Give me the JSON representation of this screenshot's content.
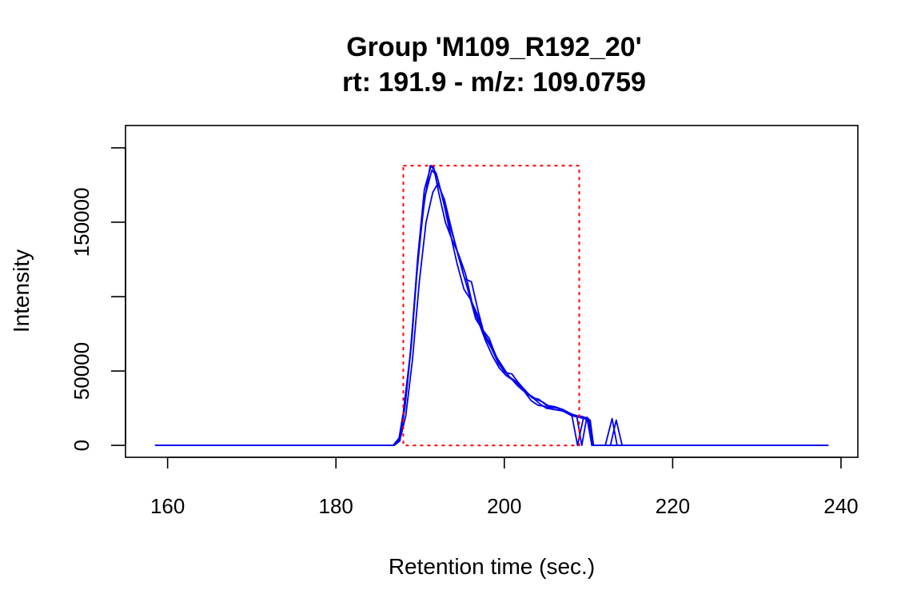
{
  "chart_data": {
    "type": "line",
    "title": "Group 'M109_R192_20'",
    "subtitle": "rt: 191.9 - m/z: 109.0759",
    "xlabel": "Retention time (sec.)",
    "ylabel": "Intensity",
    "xlim": [
      155,
      242
    ],
    "ylim": [
      -8000,
      215000
    ],
    "x_ticks": [
      160,
      180,
      200,
      220,
      240
    ],
    "y_ticks": [
      0,
      50000,
      150000
    ],
    "y_tick_marks": [
      0,
      50000,
      100000,
      150000,
      200000
    ],
    "grid": false,
    "legend": "none",
    "line_color": "#0000ee",
    "highlight_rect": {
      "x_min": 188.0,
      "x_max": 208.9,
      "y_min": 0,
      "y_max": 188000,
      "color": "#ff0000",
      "style": "dotted"
    },
    "series": [
      {
        "points": [
          [
            158.5,
            0
          ],
          [
            186.8,
            0
          ],
          [
            187.5,
            5000
          ],
          [
            188.0,
            22000
          ],
          [
            188.8,
            60000
          ],
          [
            189.6,
            115000
          ],
          [
            190.4,
            160000
          ],
          [
            191.2,
            188000
          ],
          [
            191.6,
            187000
          ],
          [
            192.2,
            170000
          ],
          [
            193.0,
            150000
          ],
          [
            193.8,
            138000
          ],
          [
            194.6,
            128000
          ],
          [
            195.4,
            115000
          ],
          [
            196.2,
            95000
          ],
          [
            197.0,
            82000
          ],
          [
            197.8,
            70000
          ],
          [
            198.6,
            60000
          ],
          [
            199.4,
            52000
          ],
          [
            200.2,
            47000
          ],
          [
            201.0,
            44000
          ],
          [
            201.8,
            40000
          ],
          [
            202.6,
            35000
          ],
          [
            203.4,
            32000
          ],
          [
            204.2,
            28000
          ],
          [
            205.0,
            25000
          ],
          [
            206.0,
            24000
          ],
          [
            207.0,
            23000
          ],
          [
            208.0,
            20000
          ],
          [
            208.8,
            19000
          ],
          [
            209.5,
            18000
          ],
          [
            210.2,
            17000
          ],
          [
            210.6,
            0
          ],
          [
            238.5,
            0
          ]
        ]
      },
      {
        "points": [
          [
            158.5,
            0
          ],
          [
            186.8,
            0
          ],
          [
            187.6,
            4000
          ],
          [
            188.2,
            26000
          ],
          [
            189.0,
            70000
          ],
          [
            189.8,
            130000
          ],
          [
            190.6,
            168000
          ],
          [
            191.4,
            185000
          ],
          [
            192.0,
            181000
          ],
          [
            192.8,
            163000
          ],
          [
            193.6,
            142000
          ],
          [
            194.4,
            122000
          ],
          [
            195.2,
            105000
          ],
          [
            196.0,
            98000
          ],
          [
            196.8,
            88000
          ],
          [
            197.6,
            75000
          ],
          [
            198.4,
            68000
          ],
          [
            199.2,
            58000
          ],
          [
            200.0,
            50000
          ],
          [
            200.8,
            45000
          ],
          [
            201.6,
            40000
          ],
          [
            202.4,
            36000
          ],
          [
            203.2,
            30000
          ],
          [
            204.0,
            27000
          ],
          [
            205.0,
            26000
          ],
          [
            206.0,
            24000
          ],
          [
            207.0,
            23500
          ],
          [
            208.0,
            21000
          ],
          [
            208.6,
            20000
          ],
          [
            209.2,
            0
          ],
          [
            209.8,
            19000
          ],
          [
            210.4,
            0
          ],
          [
            212.0,
            0
          ],
          [
            212.8,
            18000
          ],
          [
            213.4,
            0
          ],
          [
            238.5,
            0
          ]
        ]
      },
      {
        "points": [
          [
            158.5,
            0
          ],
          [
            186.9,
            0
          ],
          [
            187.7,
            6000
          ],
          [
            188.3,
            20000
          ],
          [
            189.1,
            58000
          ],
          [
            189.9,
            110000
          ],
          [
            190.7,
            150000
          ],
          [
            191.5,
            170000
          ],
          [
            192.1,
            176000
          ],
          [
            192.9,
            165000
          ],
          [
            193.7,
            146000
          ],
          [
            194.5,
            128000
          ],
          [
            195.3,
            112000
          ],
          [
            196.1,
            110000
          ],
          [
            196.9,
            90000
          ],
          [
            197.7,
            73000
          ],
          [
            198.5,
            65000
          ],
          [
            199.3,
            55000
          ],
          [
            200.1,
            49000
          ],
          [
            200.9,
            48000
          ],
          [
            201.7,
            42000
          ],
          [
            202.5,
            37000
          ],
          [
            203.3,
            32000
          ],
          [
            204.1,
            31000
          ],
          [
            205.0,
            27000
          ],
          [
            206.0,
            26000
          ],
          [
            207.0,
            24000
          ],
          [
            208.0,
            21000
          ],
          [
            208.7,
            0
          ],
          [
            209.4,
            18500
          ],
          [
            210.0,
            18000
          ],
          [
            210.6,
            0
          ],
          [
            212.6,
            0
          ],
          [
            213.3,
            17000
          ],
          [
            214.0,
            0
          ],
          [
            238.5,
            0
          ]
        ]
      },
      {
        "points": [
          [
            158.5,
            0
          ],
          [
            186.9,
            0
          ],
          [
            187.6,
            3000
          ],
          [
            188.1,
            24000
          ],
          [
            188.9,
            65000
          ],
          [
            189.7,
            125000
          ],
          [
            190.5,
            172000
          ],
          [
            191.3,
            188000
          ],
          [
            191.9,
            183000
          ],
          [
            192.6,
            168000
          ],
          [
            193.4,
            150000
          ],
          [
            194.2,
            135000
          ],
          [
            195.0,
            118000
          ],
          [
            195.8,
            102000
          ],
          [
            196.6,
            85000
          ],
          [
            197.4,
            78000
          ],
          [
            198.2,
            72000
          ],
          [
            199.0,
            60000
          ],
          [
            199.8,
            53000
          ],
          [
            200.6,
            46000
          ],
          [
            201.4,
            43000
          ],
          [
            202.2,
            38000
          ],
          [
            203.0,
            34000
          ],
          [
            203.8,
            31000
          ],
          [
            204.6,
            29000
          ],
          [
            205.4,
            26000
          ],
          [
            206.4,
            25000
          ],
          [
            207.4,
            22000
          ],
          [
            208.4,
            20000
          ],
          [
            209.2,
            19500
          ],
          [
            210.0,
            18000
          ],
          [
            210.4,
            0
          ],
          [
            238.5,
            0
          ]
        ]
      }
    ]
  }
}
